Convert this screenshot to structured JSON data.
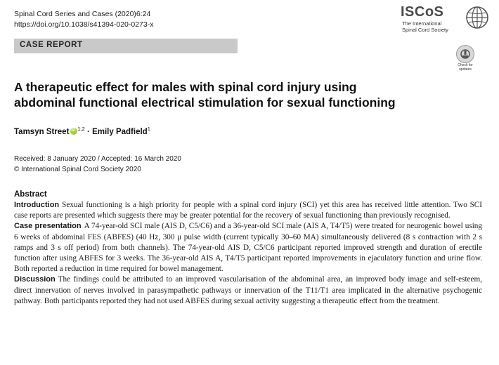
{
  "header": {
    "journal_line1": "Spinal Cord Series and Cases (2020)6:24",
    "journal_line2": "https://doi.org/10.1038/s41394-020-0273-x",
    "logo_text": "ISCoS",
    "logo_sub1": "The International",
    "logo_sub2": "Spinal Cord Society"
  },
  "band_label": "CASE REPORT",
  "check_updates": {
    "line1": "Check for",
    "line2": "updates"
  },
  "article": {
    "title_line1": "A therapeutic effect for males with spinal cord injury using",
    "title_line2": "abdominal functional electrical stimulation for sexual functioning",
    "author1": "Tamsyn Street",
    "author1_sup": "1,2",
    "separator": "·",
    "author2": "Emily Padfield",
    "author2_sup": "1",
    "received": "Received: 8 January 2020 / Accepted: 16 March 2020",
    "copyright": "© International Spinal Cord Society 2020"
  },
  "abstract": {
    "heading": "Abstract",
    "sections": [
      {
        "label": "Introduction",
        "text": "Sexual functioning is a high priority for people with a spinal cord injury (SCI) yet this area has received little attention. Two SCI case reports are presented which suggests there may be greater potential for the recovery of sexual functioning than previously recognised."
      },
      {
        "label": "Case presentation",
        "text": "A 74-year-old SCI male (AIS D, C5/C6) and a 36-year-old SCI male (AIS A, T4/T5) were treated for neurogenic bowel using 6 weeks of abdominal FES (ABFES) (40 Hz, 300 μ pulse width (current typically 30–60 MA) simultaneously delivered (8 s contraction with 2 s ramps and 3 s off period) from both channels). The 74-year-old AIS D, C5/C6 participant reported improved strength and duration of erectile function after using ABFES for 3 weeks. The 36-year-old AIS A, T4/T5 participant reported improvements in ejaculatory function and urine flow. Both reported a reduction in time required for bowel management."
      },
      {
        "label": "Discussion",
        "text": "The findings could be attributed to an improved vascularisation of the abdominal area, an improved body image and self-esteem, direct innervation of nerves involved in parasympathetic pathways or innervation of the T11/T1 area implicated in the alternative psychogenic pathway. Both participants reported they had not used ABFES during sexual activity suggesting a therapeutic effect from the treatment."
      }
    ]
  }
}
